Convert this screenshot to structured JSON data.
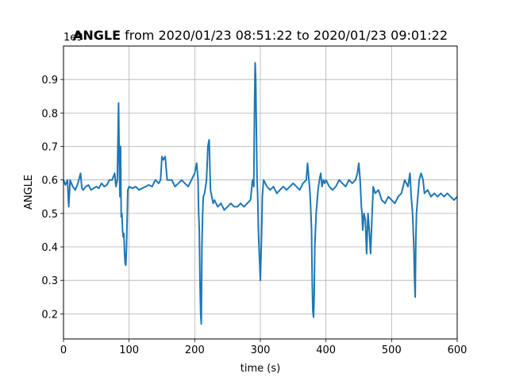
{
  "chart_data": {
    "type": "line",
    "title_bold": "ANGLE",
    "title_rest": " from 2020/01/23 08:51:22 to 2020/01/23 09:01:22",
    "xlabel": "time (s)",
    "ylabel": "ANGLE",
    "y_offset_label": "1e9",
    "xlim": [
      0,
      600
    ],
    "ylim": [
      0.125,
      1.0
    ],
    "xticks": [
      0,
      100,
      200,
      300,
      400,
      500,
      600
    ],
    "yticks": [
      0.2,
      0.3,
      0.4,
      0.5,
      0.6,
      0.7,
      0.8,
      0.9
    ],
    "grid": true,
    "line_color": "#1f77b4",
    "series": [
      {
        "x": [
          0,
          3,
          6,
          8,
          10,
          12,
          14,
          18,
          22,
          26,
          28,
          30,
          34,
          38,
          42,
          46,
          50,
          54,
          58,
          62,
          66,
          70,
          74,
          78,
          80,
          82,
          84,
          85,
          86,
          87,
          88,
          89,
          90,
          91,
          92,
          93,
          94,
          95,
          96,
          98,
          100,
          105,
          110,
          115,
          120,
          125,
          130,
          135,
          140,
          145,
          148,
          150,
          152,
          155,
          158,
          160,
          165,
          170,
          175,
          180,
          185,
          190,
          195,
          200,
          203,
          205,
          206,
          207,
          208,
          209,
          210,
          211,
          212,
          213,
          215,
          218,
          220,
          222,
          224,
          226,
          228,
          230,
          235,
          240,
          245,
          250,
          255,
          260,
          265,
          270,
          275,
          280,
          285,
          288,
          290,
          291,
          292,
          293,
          294,
          295,
          296,
          297,
          298,
          299,
          300,
          301,
          302,
          303,
          305,
          310,
          315,
          320,
          325,
          330,
          335,
          340,
          345,
          350,
          355,
          360,
          365,
          370,
          372,
          374,
          375,
          376,
          377,
          378,
          379,
          380,
          381,
          382,
          383,
          385,
          388,
          390,
          392,
          394,
          396,
          398,
          400,
          405,
          410,
          415,
          420,
          425,
          430,
          435,
          440,
          445,
          448,
          450,
          452,
          454,
          455,
          456,
          458,
          460,
          462,
          464,
          466,
          468,
          470,
          472,
          475,
          480,
          485,
          490,
          495,
          500,
          505,
          510,
          515,
          520,
          525,
          528,
          530,
          532,
          534,
          535,
          536,
          537,
          538,
          540,
          542,
          545,
          548,
          550,
          555,
          560,
          565,
          570,
          575,
          580,
          585,
          590,
          595,
          600
        ],
        "y": [
          0.6,
          0.585,
          0.6,
          0.52,
          0.6,
          0.59,
          0.58,
          0.57,
          0.59,
          0.62,
          0.575,
          0.57,
          0.58,
          0.585,
          0.57,
          0.575,
          0.58,
          0.575,
          0.59,
          0.58,
          0.585,
          0.6,
          0.6,
          0.62,
          0.58,
          0.6,
          0.83,
          0.65,
          0.55,
          0.7,
          0.49,
          0.5,
          0.45,
          0.43,
          0.44,
          0.38,
          0.35,
          0.345,
          0.4,
          0.57,
          0.58,
          0.575,
          0.58,
          0.57,
          0.575,
          0.58,
          0.585,
          0.58,
          0.6,
          0.59,
          0.6,
          0.67,
          0.66,
          0.67,
          0.6,
          0.6,
          0.6,
          0.58,
          0.59,
          0.6,
          0.59,
          0.58,
          0.6,
          0.62,
          0.65,
          0.6,
          0.5,
          0.45,
          0.3,
          0.2,
          0.17,
          0.4,
          0.5,
          0.55,
          0.56,
          0.6,
          0.7,
          0.72,
          0.57,
          0.55,
          0.53,
          0.54,
          0.52,
          0.53,
          0.51,
          0.52,
          0.53,
          0.52,
          0.52,
          0.53,
          0.52,
          0.53,
          0.54,
          0.6,
          0.58,
          0.8,
          0.95,
          0.9,
          0.75,
          0.6,
          0.55,
          0.45,
          0.4,
          0.35,
          0.3,
          0.37,
          0.45,
          0.55,
          0.6,
          0.58,
          0.57,
          0.58,
          0.56,
          0.57,
          0.58,
          0.57,
          0.58,
          0.59,
          0.58,
          0.57,
          0.59,
          0.6,
          0.65,
          0.6,
          0.58,
          0.55,
          0.5,
          0.45,
          0.3,
          0.21,
          0.19,
          0.25,
          0.4,
          0.5,
          0.57,
          0.6,
          0.62,
          0.58,
          0.6,
          0.59,
          0.6,
          0.58,
          0.57,
          0.58,
          0.6,
          0.59,
          0.58,
          0.6,
          0.59,
          0.6,
          0.62,
          0.65,
          0.6,
          0.52,
          0.5,
          0.45,
          0.5,
          0.48,
          0.38,
          0.5,
          0.45,
          0.38,
          0.48,
          0.58,
          0.56,
          0.57,
          0.54,
          0.53,
          0.55,
          0.54,
          0.53,
          0.55,
          0.56,
          0.6,
          0.58,
          0.62,
          0.55,
          0.5,
          0.4,
          0.3,
          0.25,
          0.42,
          0.5,
          0.55,
          0.6,
          0.62,
          0.6,
          0.56,
          0.57,
          0.55,
          0.56,
          0.55,
          0.56,
          0.55,
          0.56,
          0.55,
          0.54,
          0.55
        ]
      }
    ]
  }
}
